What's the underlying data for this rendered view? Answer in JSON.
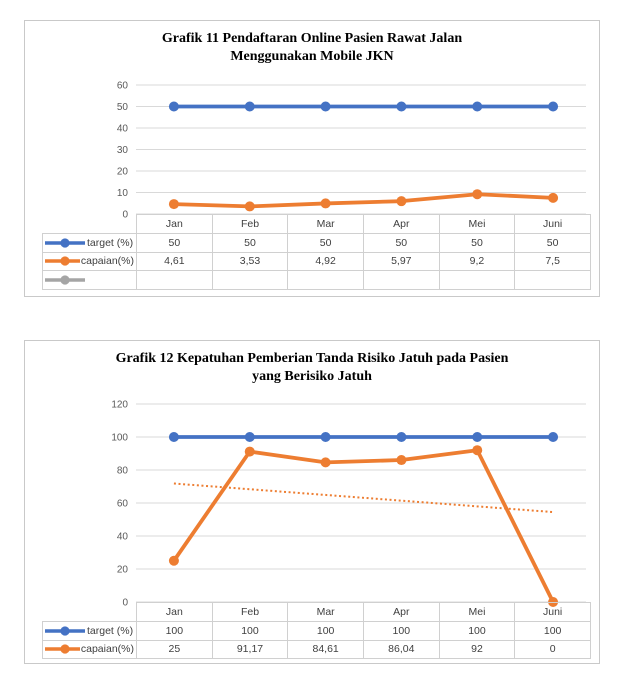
{
  "page": {
    "background": "#ffffff"
  },
  "colors": {
    "target_blue": "#4472C4",
    "capaian_orange": "#ED7D31",
    "empty_gray": "#A5A5A5",
    "gridline": "#D9D9D9",
    "table_border": "#D0D0D0",
    "axis_text": "#595959",
    "cell_text": "#3F3F3F",
    "box_border": "#C9C9C9",
    "title_text": "#000000"
  },
  "chart_data": [
    {
      "type": "line",
      "title": "Grafik 11 Pendaftaran Online Pasien Rawat Jalan Menggunakan Mobile JKN",
      "title_line1": "Grafik 11 Pendaftaran Online Pasien Rawat Jalan",
      "title_line2": "Menggunakan Mobile JKN",
      "xlabel": "",
      "ylabel": "",
      "ylim": [
        0,
        60
      ],
      "ytick": 10,
      "y_tick_labels": [
        "0",
        "10",
        "20",
        "30",
        "40",
        "50",
        "60"
      ],
      "grid": true,
      "marker": "circle",
      "legend_position": "table-left",
      "categories": [
        "Jan",
        "Feb",
        "Mar",
        "Apr",
        "Mei",
        "Juni"
      ],
      "series": [
        {
          "name": "target (%)",
          "color": "#4472C4",
          "values": [
            50,
            50,
            50,
            50,
            50,
            50
          ],
          "labels": [
            "50",
            "50",
            "50",
            "50",
            "50",
            "50"
          ]
        },
        {
          "name": "capaian(%)",
          "color": "#ED7D31",
          "values": [
            4.61,
            3.53,
            4.92,
            5.97,
            9.2,
            7.5
          ],
          "labels": [
            "4,61",
            "3,53",
            "4,92",
            "5,97",
            "9,2",
            "7,5"
          ]
        },
        {
          "name": "",
          "color": "#A5A5A5",
          "values": [],
          "labels": [
            "",
            "",
            "",
            "",
            "",
            ""
          ]
        }
      ]
    },
    {
      "type": "line",
      "title": "Grafik 12 Kepatuhan Pemberian Tanda Risiko Jatuh pada Pasien yang Berisiko Jatuh",
      "title_line1": "Grafik 12 Kepatuhan Pemberian Tanda Risiko Jatuh pada Pasien",
      "title_line2": "yang Berisiko Jatuh",
      "xlabel": "",
      "ylabel": "",
      "ylim": [
        0,
        120
      ],
      "ytick": 20,
      "y_tick_labels": [
        "0",
        "20",
        "40",
        "60",
        "80",
        "100",
        "120"
      ],
      "grid": true,
      "marker": "circle",
      "legend_position": "table-left",
      "categories": [
        "Jan",
        "Feb",
        "Mar",
        "Apr",
        "Mei",
        "Juni"
      ],
      "series": [
        {
          "name": "target (%)",
          "color": "#4472C4",
          "values": [
            100,
            100,
            100,
            100,
            100,
            100
          ],
          "labels": [
            "100",
            "100",
            "100",
            "100",
            "100",
            "100"
          ]
        },
        {
          "name": "capaian(%)",
          "color": "#ED7D31",
          "values": [
            25,
            91.17,
            84.61,
            86.04,
            92,
            0
          ],
          "labels": [
            "25",
            "91,17",
            "84,61",
            "86,04",
            "92",
            "0"
          ]
        }
      ],
      "trendline": {
        "series": "capaian(%)",
        "style": "dotted",
        "color": "#ED7D31",
        "start_value": 71.8,
        "end_value": 54.5
      }
    }
  ]
}
